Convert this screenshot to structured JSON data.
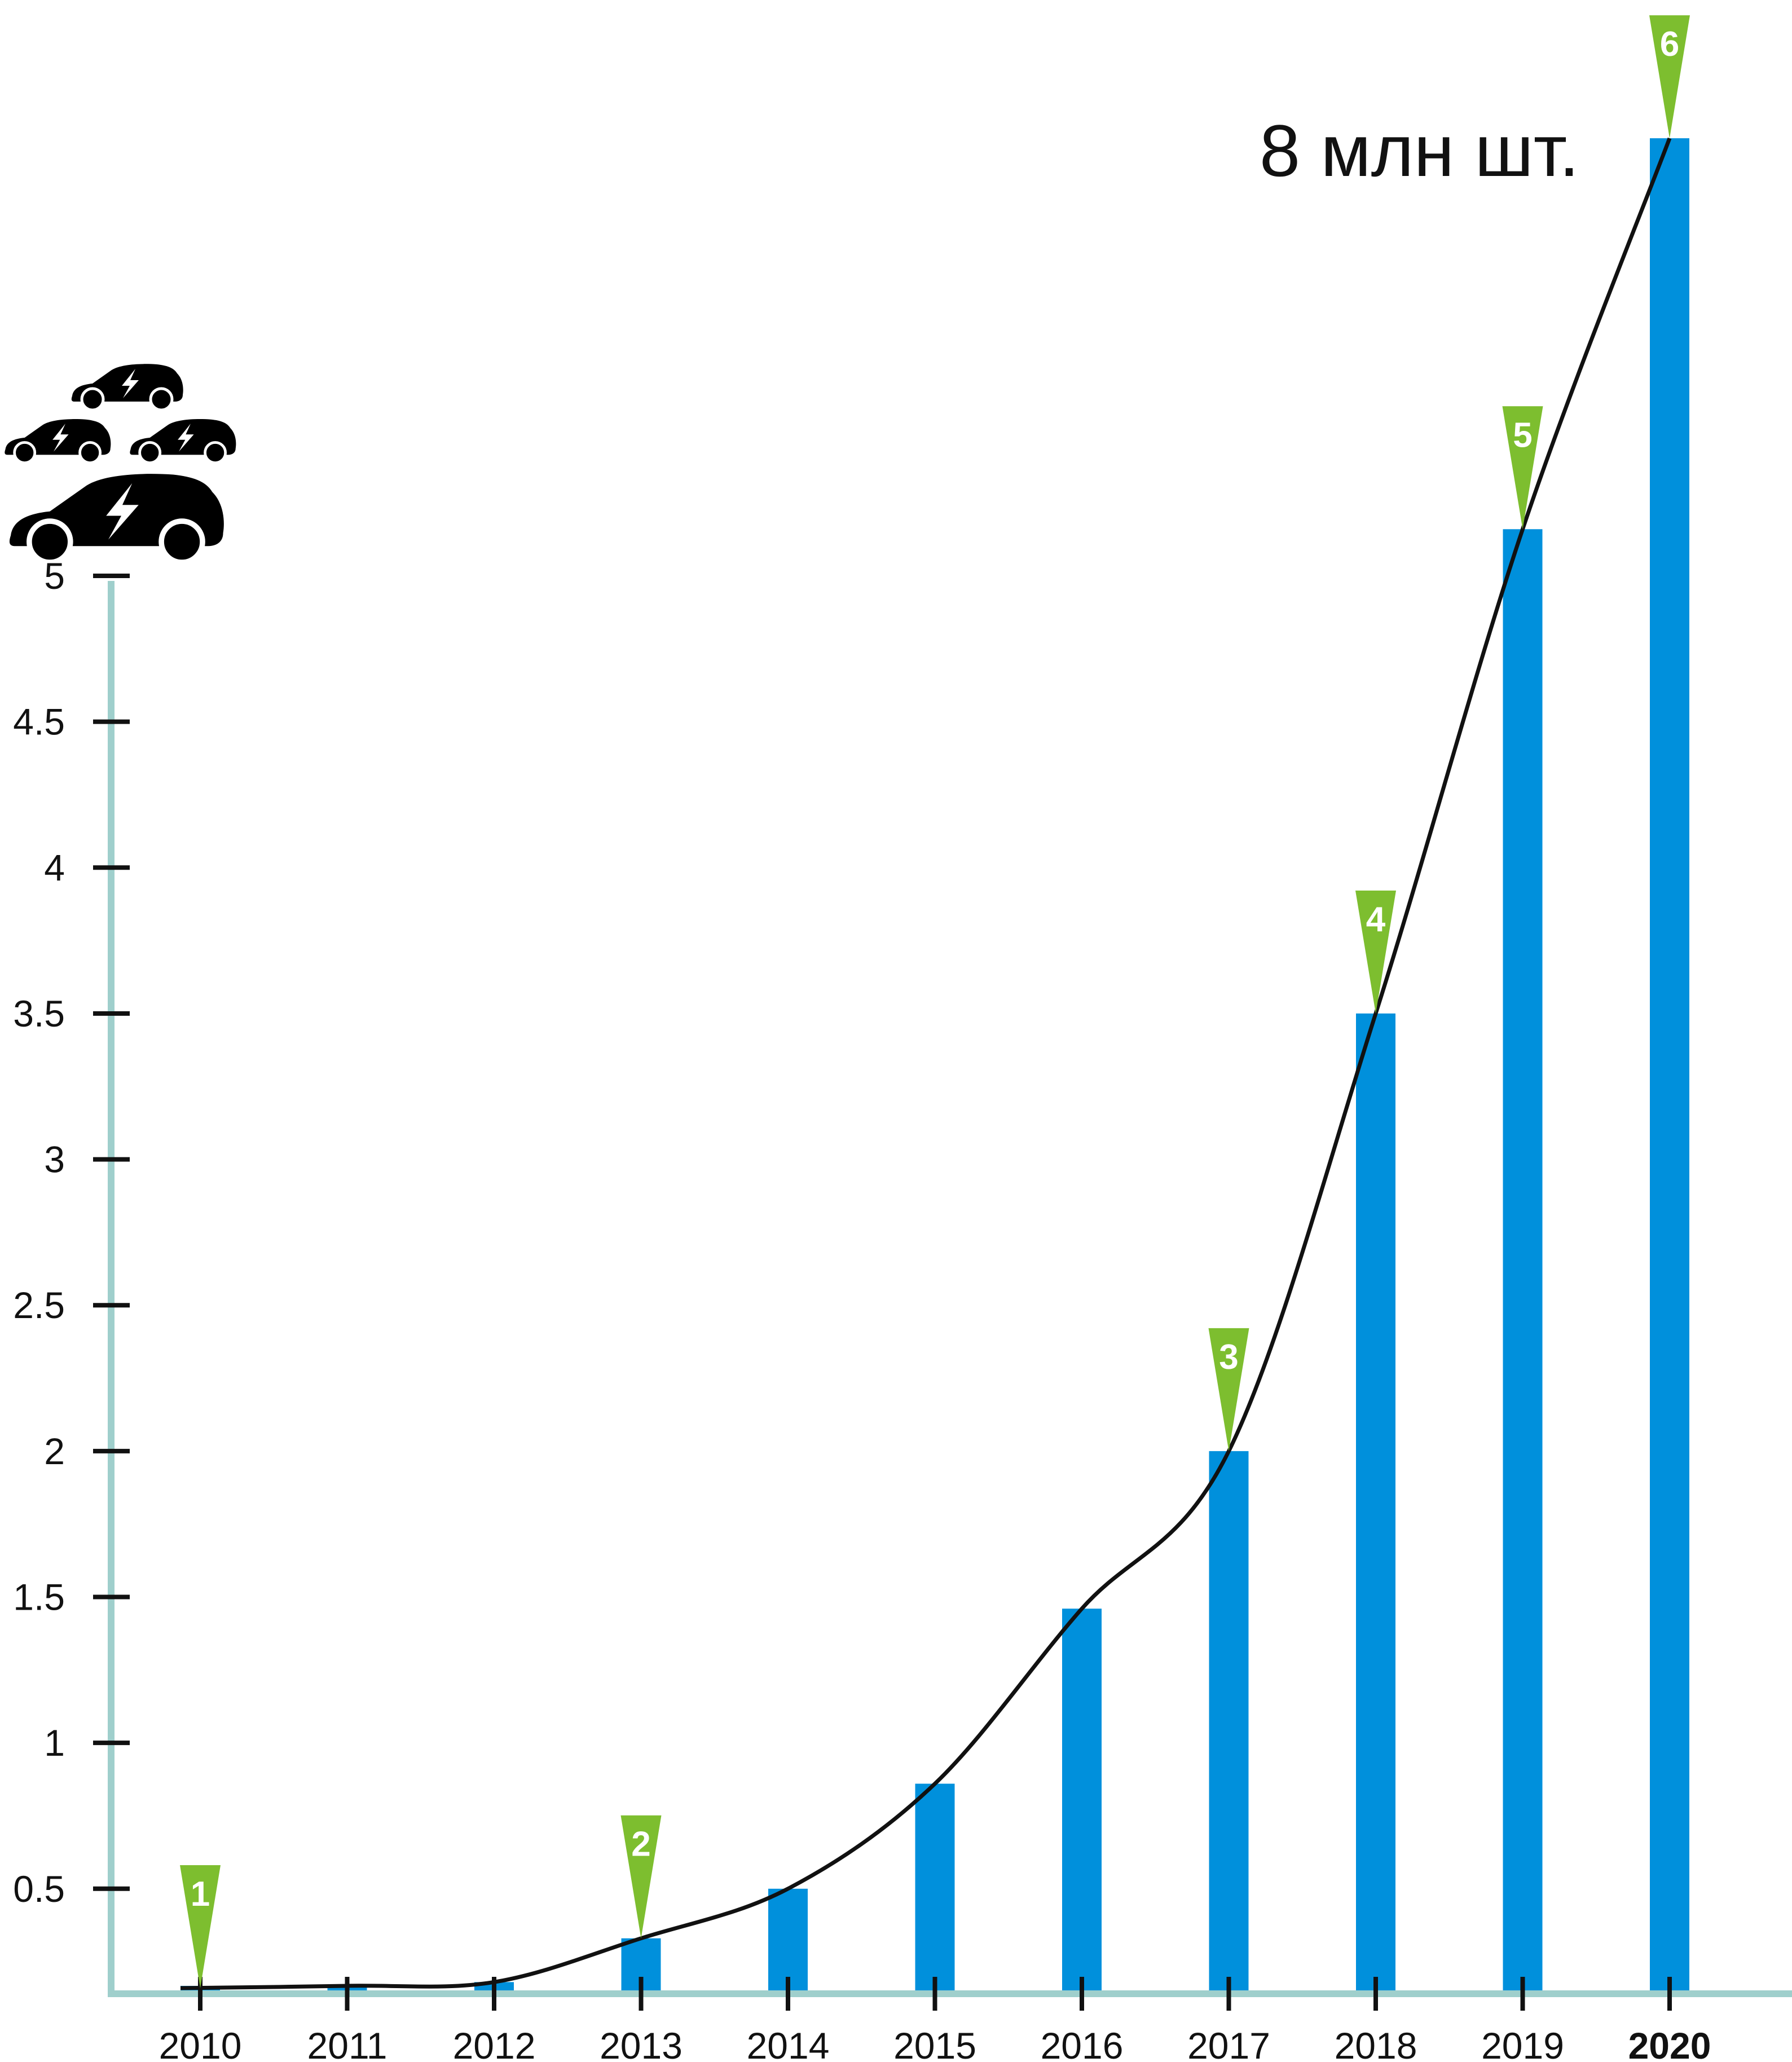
{
  "colors": {
    "bar": "#0090dc",
    "axis": "#9fcfcc",
    "tick": "#111111",
    "curve": "#111111",
    "marker": "#7dbe2f",
    "marker_text": "#ffffff"
  },
  "icons": [
    "electric-car-icon"
  ],
  "chart_data": {
    "type": "bar",
    "title": "",
    "xlabel": "",
    "ylabel": "",
    "categories": [
      "2010",
      "2011",
      "2012",
      "2013",
      "2014",
      "2015",
      "2016",
      "2017",
      "2018",
      "2019",
      "2020"
    ],
    "bold_categories": [
      "2020"
    ],
    "values": [
      0.05,
      0.11,
      0.18,
      0.33,
      0.5,
      0.86,
      1.46,
      2.0,
      3.5,
      5.16,
      6.5
    ],
    "ylim": [
      0.14,
      6.97
    ],
    "yticks": [
      0.5,
      1,
      1.5,
      2,
      2.5,
      3,
      3.5,
      4,
      4.5,
      5
    ],
    "ytick_labels": [
      "0.5",
      "1",
      "1.5",
      "2",
      "2.5",
      "3",
      "3.5",
      "4",
      "4.5",
      "5"
    ],
    "grid": false,
    "trend_line": true,
    "markers": [
      {
        "category": "2010",
        "label": "1"
      },
      {
        "category": "2013",
        "label": "2"
      },
      {
        "category": "2017",
        "label": "3"
      },
      {
        "category": "2018",
        "label": "4"
      },
      {
        "category": "2019",
        "label": "5"
      },
      {
        "category": "2020",
        "label": "6"
      }
    ],
    "annotation": "8 млн шт."
  }
}
